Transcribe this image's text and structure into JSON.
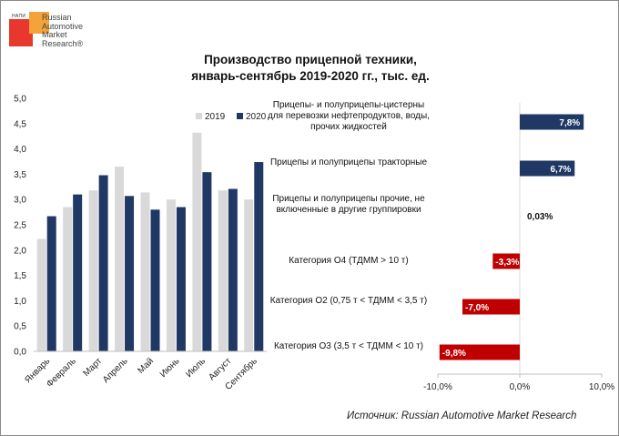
{
  "logo": {
    "abbr": "НАПИ",
    "name": "Russian\nAutomotive\nMarket\nResearch®"
  },
  "title_lines": [
    "Производство прицепной техники,",
    "январь-сентябрь 2019-2020 гг., тыс. ед."
  ],
  "source": "Источник: Russian Automotive Market Research",
  "colors": {
    "series2019": "#d9d9d9",
    "series2020": "#203864",
    "positive": "#203864",
    "negative": "#c00000"
  },
  "chart_data": [
    {
      "type": "bar",
      "title": "Производство прицепной техники, январь-сентябрь 2019-2020 гг., тыс. ед.",
      "categories": [
        "Январь",
        "Февраль",
        "Март",
        "Апрель",
        "Май",
        "Июнь",
        "Июль",
        "Август",
        "Сентябрь"
      ],
      "series": [
        {
          "name": "2019",
          "values": [
            2.22,
            2.85,
            3.18,
            3.65,
            3.14,
            3.0,
            4.32,
            3.18,
            3.0
          ]
        },
        {
          "name": "2020",
          "values": [
            2.67,
            3.1,
            3.48,
            3.07,
            2.8,
            2.85,
            3.54,
            3.21,
            3.74
          ]
        }
      ],
      "ylim": [
        0,
        5
      ],
      "yticks": [
        "0,0",
        "0,5",
        "1,0",
        "1,5",
        "2,0",
        "2,5",
        "3,0",
        "3,5",
        "4,0",
        "4,5",
        "5,0"
      ],
      "legend": "top-right",
      "grid": false
    },
    {
      "type": "bar",
      "orientation": "horizontal",
      "categories": [
        "Прицепы- и полуприцепы-цистерны для перевозки нефтепродуктов, воды, прочих жидкостей",
        "Прицепы и полуприцепы тракторные",
        "Прицепы и полуприцепы прочие, не включенные в другие группировки",
        "Категория О4 (ТДММ > 10 т)",
        "Категория О2 (0,75 т < ТДММ < 3,5 т)",
        "Категория О3 (3,5 т < ТДММ < 10 т)"
      ],
      "values": [
        7.8,
        6.7,
        0.03,
        -3.3,
        -7.0,
        -9.8
      ],
      "value_labels": [
        "7,8%",
        "6,7%",
        "0,03%",
        "-3,3%",
        "-7,0%",
        "-9,8%"
      ],
      "xlim": [
        -10,
        10
      ],
      "xticks": [
        "-10,0%",
        "0,0%",
        "10,0%"
      ]
    }
  ]
}
